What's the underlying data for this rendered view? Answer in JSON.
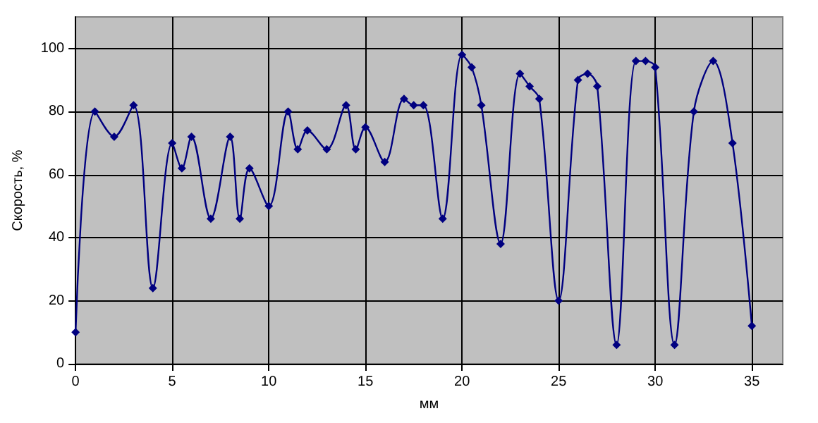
{
  "chart_data": {
    "type": "line",
    "xlabel": "мм",
    "ylabel": "Скорость, %",
    "x": [
      0,
      1,
      2,
      3,
      4,
      5,
      5.5,
      6,
      7,
      8,
      8.5,
      9,
      10,
      11,
      11.5,
      12,
      13,
      14,
      14.5,
      15,
      16,
      17,
      17.5,
      18,
      19,
      20,
      20.5,
      21,
      22,
      23,
      23.5,
      24,
      25,
      26,
      26.5,
      27,
      28,
      29,
      29.5,
      30,
      31,
      32,
      33,
      34,
      35
    ],
    "series": [
      {
        "color": "#000080",
        "values": [
          10,
          80,
          72,
          82,
          24,
          70,
          62,
          72,
          46,
          72,
          46,
          62,
          50,
          80,
          68,
          74,
          68,
          82,
          68,
          75,
          64,
          84,
          82,
          82,
          46,
          98,
          94,
          82,
          38,
          92,
          88,
          84,
          20,
          90,
          92,
          88,
          6,
          96,
          96,
          94,
          6,
          80,
          96,
          70,
          12
        ]
      }
    ],
    "xlim": [
      0,
      36.6
    ],
    "xticks": [
      0,
      5,
      10,
      15,
      20,
      25,
      30,
      35
    ],
    "ylim": [
      0,
      110
    ],
    "yticks": [
      0,
      20,
      40,
      60,
      80,
      100
    ],
    "grid": true,
    "marker": "diamond",
    "line_style": "solid"
  }
}
